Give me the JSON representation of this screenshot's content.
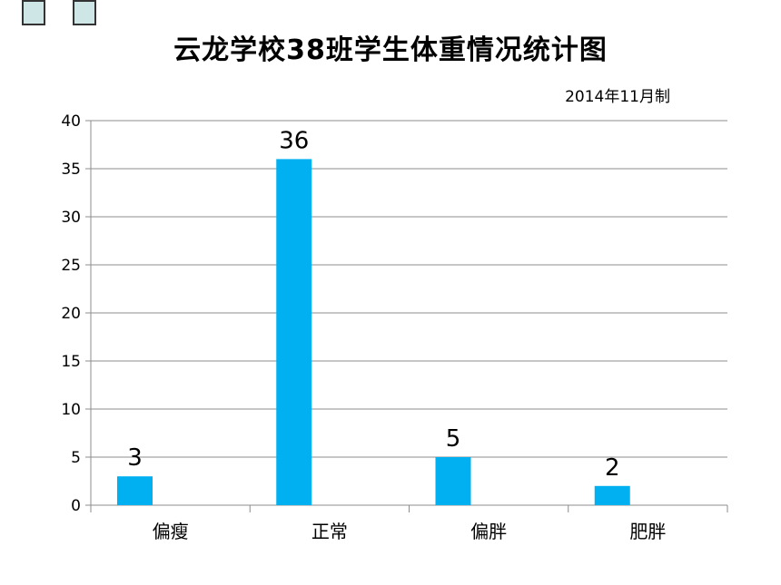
{
  "chart_data": {
    "type": "bar",
    "title": "云龙学校38班学生体重情况统计图",
    "subtitle": "2014年11月制",
    "categories": [
      "偏瘦",
      "正常",
      "偏胖",
      "肥胖"
    ],
    "values": [
      3,
      36,
      5,
      2
    ],
    "ylim": [
      0,
      40
    ],
    "yticks": [
      0,
      5,
      10,
      15,
      20,
      25,
      30,
      35,
      40
    ],
    "grid": true,
    "bar_color": "#00b0f0",
    "data_labels": true
  }
}
